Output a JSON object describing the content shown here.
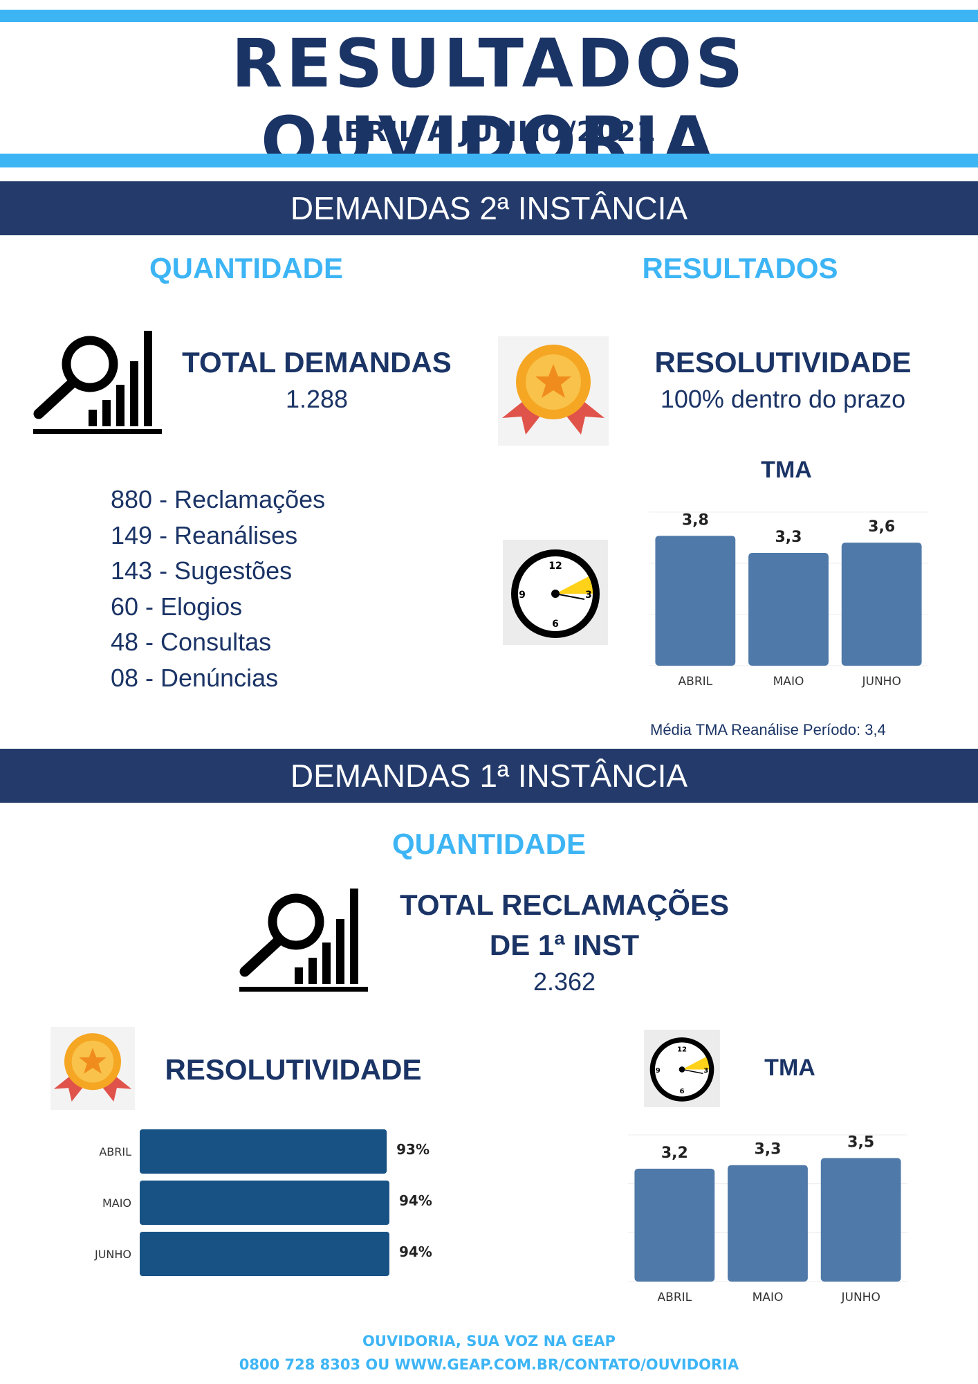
{
  "header": {
    "title": "RESULTADOS OUVIDORIA",
    "period": "ABRIL A JUNHO/2021"
  },
  "second_instance": {
    "band_title": "DEMANDAS 2ª INSTÂNCIA",
    "quantity_heading": "QUANTIDADE",
    "results_heading": "RESULTADOS",
    "total_label": "TOTAL DEMANDAS",
    "total_value": "1.288",
    "types": [
      "880 - Reclamações",
      "149 - Reanálises",
      "143 - Sugestões",
      "60 - Elogios",
      "48 - Consultas",
      "08 - Denúncias"
    ],
    "resolutividade_label": "RESOLUTIVIDADE",
    "resolutividade_value": "100% dentro do prazo",
    "tma_title": "TMA",
    "tma_note": "Média TMA Reanálise Período: 3,4"
  },
  "first_instance": {
    "band_title": "DEMANDAS 1ª INSTÂNCIA",
    "quantity_heading": "QUANTIDADE",
    "total_label_line1": "TOTAL RECLAMAÇÕES",
    "total_label_line2": "DE 1ª INST",
    "total_value": "2.362",
    "resolutividade_label": "RESOLUTIVIDADE",
    "tma_title": "TMA"
  },
  "footer": {
    "line1": "OUVIDORIA, SUA VOZ NA GEAP",
    "line2": "0800 728 8303 OU WWW.GEAP.COM.BR/CONTATO/OUVIDORIA"
  },
  "icons": {
    "quantity": "magnifier-bar-chart-icon",
    "resolutividade": "medal-icon",
    "tma": "clock-icon"
  },
  "colors": {
    "navy": "#1b3466",
    "band": "#233a6b",
    "accent": "#3db5f5",
    "bar_column": "#4f79a8",
    "bar_horizontal": "#185285"
  },
  "chart_data": [
    {
      "type": "bar",
      "title": "TMA",
      "categories": [
        "ABRIL",
        "MAIO",
        "JUNHO"
      ],
      "values": [
        3.8,
        3.3,
        3.6
      ],
      "value_labels": [
        "3,8",
        "3,3",
        "3,6"
      ],
      "orientation": "vertical",
      "grid": true,
      "legend": "none"
    },
    {
      "type": "bar",
      "title": "RESOLUTIVIDADE",
      "categories": [
        "ABRIL",
        "MAIO",
        "JUNHO"
      ],
      "values": [
        93,
        94,
        94
      ],
      "value_labels": [
        "93%",
        "94%",
        "94%"
      ],
      "orientation": "horizontal",
      "grid": false,
      "legend": "none"
    },
    {
      "type": "bar",
      "title": "TMA",
      "categories": [
        "ABRIL",
        "MAIO",
        "JUNHO"
      ],
      "values": [
        3.2,
        3.3,
        3.5
      ],
      "value_labels": [
        "3,2",
        "3,3",
        "3,5"
      ],
      "orientation": "vertical",
      "grid": true,
      "legend": "none"
    }
  ]
}
